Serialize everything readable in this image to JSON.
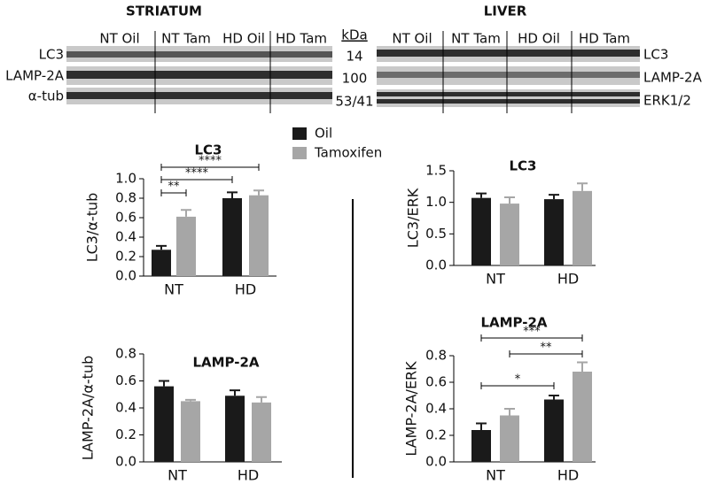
{
  "blots": {
    "striatum": {
      "title": "STRIATUM",
      "lanes": [
        "NT Oil",
        "NT Tam",
        "HD Oil",
        "HD Tam"
      ],
      "rows": [
        "LC3",
        "LAMP-2A",
        "α-tub"
      ]
    },
    "kda": {
      "header": "kDa",
      "values": [
        "14",
        "100",
        "53/41"
      ]
    },
    "liver": {
      "title": "LIVER",
      "lanes": [
        "NT Oil",
        "NT Tam",
        "HD Oil",
        "HD Tam"
      ],
      "rows": [
        "LC3",
        "LAMP-2A",
        "ERK1/2"
      ]
    }
  },
  "chart_data": [
    {
      "type": "bar",
      "title": "LC3",
      "y_label": "LC3/α-tub",
      "categories": [
        "NT",
        "HD"
      ],
      "series": [
        {
          "name": "Oil",
          "color": "#1a1a1a",
          "values": [
            0.27,
            0.8
          ],
          "errors": [
            0.04,
            0.06
          ]
        },
        {
          "name": "Tamoxifen",
          "color": "#a6a6a6",
          "values": [
            0.61,
            0.83
          ],
          "errors": [
            0.07,
            0.05
          ]
        }
      ],
      "ylim": [
        0,
        1.0
      ],
      "yticks": [
        {
          "value": 0,
          "label": "0.0"
        },
        {
          "value": 0.2,
          "label": "0.2"
        },
        {
          "value": 0.4,
          "label": "0.4"
        },
        {
          "value": 0.6,
          "label": "0.6"
        },
        {
          "value": 0.8,
          "label": "0.8"
        },
        {
          "value": 1,
          "label": "1.0"
        }
      ],
      "annotations": [
        "**",
        "****",
        "****"
      ]
    },
    {
      "type": "bar",
      "title": "LC3",
      "y_label": "LC3/ERK",
      "categories": [
        "NT",
        "HD"
      ],
      "series": [
        {
          "name": "Oil",
          "color": "#1a1a1a",
          "values": [
            1.07,
            1.05
          ],
          "errors": [
            0.07,
            0.07
          ]
        },
        {
          "name": "Tamoxifen",
          "color": "#a6a6a6",
          "values": [
            0.98,
            1.18
          ],
          "errors": [
            0.1,
            0.12
          ]
        }
      ],
      "ylim": [
        0,
        1.5
      ],
      "yticks": [
        {
          "value": 0,
          "label": "0.0"
        },
        {
          "value": 0.5,
          "label": "0.5"
        },
        {
          "value": 1,
          "label": "1.0"
        },
        {
          "value": 1.5,
          "label": "1.5"
        }
      ],
      "annotations": []
    },
    {
      "type": "bar",
      "title": "LAMP-2A",
      "y_label": "LAMP-2A/α-tub",
      "categories": [
        "NT",
        "HD"
      ],
      "series": [
        {
          "name": "Oil",
          "color": "#1a1a1a",
          "values": [
            0.56,
            0.49
          ],
          "errors": [
            0.04,
            0.04
          ]
        },
        {
          "name": "Tamoxifen",
          "color": "#a6a6a6",
          "values": [
            0.45,
            0.44
          ],
          "errors": [
            0.01,
            0.04
          ]
        }
      ],
      "ylim": [
        0,
        0.8
      ],
      "yticks": [
        {
          "value": 0,
          "label": "0.0"
        },
        {
          "value": 0.2,
          "label": "0.2"
        },
        {
          "value": 0.4,
          "label": "0.4"
        },
        {
          "value": 0.6,
          "label": "0.6"
        },
        {
          "value": 0.8,
          "label": "0.8"
        }
      ],
      "annotations": []
    },
    {
      "type": "bar",
      "title": "LAMP-2A",
      "y_label": "LAMP-2A/ERK",
      "categories": [
        "NT",
        "HD"
      ],
      "series": [
        {
          "name": "Oil",
          "color": "#1a1a1a",
          "values": [
            0.24,
            0.47
          ],
          "errors": [
            0.05,
            0.03
          ]
        },
        {
          "name": "Tamoxifen",
          "color": "#a6a6a6",
          "values": [
            0.35,
            0.68
          ],
          "errors": [
            0.05,
            0.07
          ]
        }
      ],
      "ylim": [
        0,
        0.8
      ],
      "yticks": [
        {
          "value": 0,
          "label": "0.0"
        },
        {
          "value": 0.2,
          "label": "0.2"
        },
        {
          "value": 0.4,
          "label": "0.4"
        },
        {
          "value": 0.6,
          "label": "0.6"
        },
        {
          "value": 0.8,
          "label": "0.8"
        }
      ],
      "annotations": [
        "*",
        "**",
        "***"
      ]
    }
  ]
}
